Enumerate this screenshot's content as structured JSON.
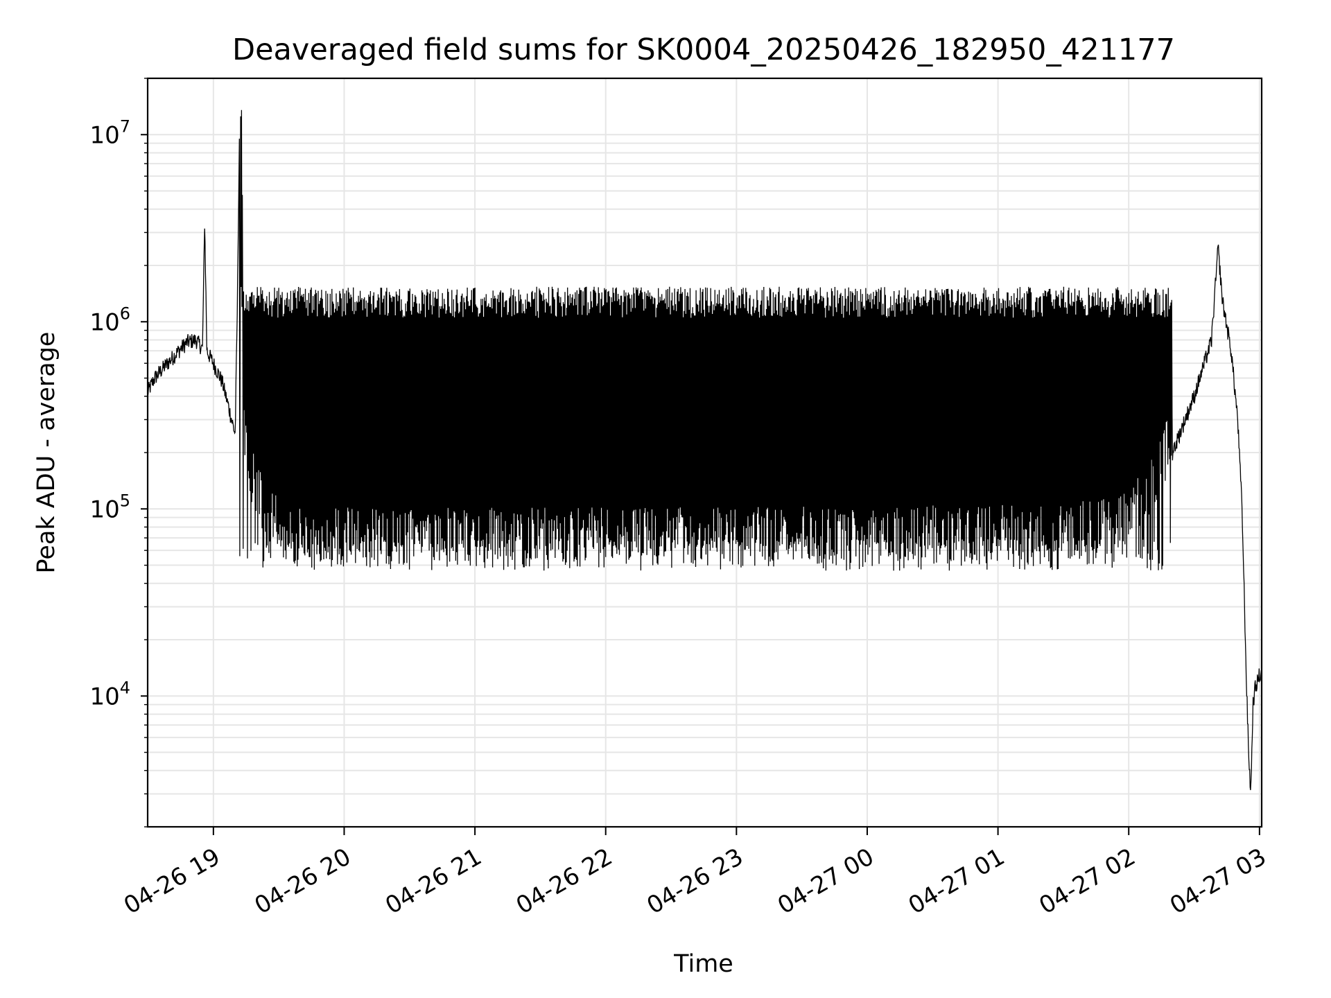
{
  "chart_data": {
    "type": "line",
    "title": "Deaveraged field sums for SK0004_20250426_182950_421177",
    "xlabel": "Time",
    "ylabel": "Peak ADU - average",
    "yscale": "log",
    "ylim": [
      2000,
      20000000
    ],
    "xlim": [
      "2025-04-26T18:29:50",
      "2025-04-27T03:01:00"
    ],
    "x_ticks": [
      {
        "time": "2025-04-26T19:00",
        "label": "04-26 19"
      },
      {
        "time": "2025-04-26T20:00",
        "label": "04-26 20"
      },
      {
        "time": "2025-04-26T21:00",
        "label": "04-26 21"
      },
      {
        "time": "2025-04-26T22:00",
        "label": "04-26 22"
      },
      {
        "time": "2025-04-26T23:00",
        "label": "04-26 23"
      },
      {
        "time": "2025-04-27T00:00",
        "label": "04-27 00"
      },
      {
        "time": "2025-04-27T01:00",
        "label": "04-27 01"
      },
      {
        "time": "2025-04-27T02:00",
        "label": "04-27 02"
      },
      {
        "time": "2025-04-27T03:00",
        "label": "04-27 03"
      }
    ],
    "y_ticks": [
      {
        "value": 10000,
        "base": "10",
        "exp": "4"
      },
      {
        "value": 100000,
        "base": "10",
        "exp": "5"
      },
      {
        "value": 1000000,
        "base": "10",
        "exp": "6"
      },
      {
        "value": 10000000,
        "base": "10",
        "exp": "7"
      }
    ],
    "grid": true,
    "line_color": "#000000",
    "grid_color": "#e6e6e6",
    "series": [
      {
        "values_description_free": true,
        "points": [
          [
            "2025-04-26T18:29:50",
            420000
          ],
          [
            "2025-04-26T18:33:00",
            500000
          ],
          [
            "2025-04-26T18:36:00",
            550000
          ],
          [
            "2025-04-26T18:40:00",
            620000
          ],
          [
            "2025-04-26T18:44:00",
            700000
          ],
          [
            "2025-04-26T18:48:00",
            780000
          ],
          [
            "2025-04-26T18:52:00",
            800000
          ],
          [
            "2025-04-26T18:55:00",
            720000
          ],
          [
            "2025-04-26T18:56:00",
            3500000
          ],
          [
            "2025-04-26T18:57:00",
            700000
          ],
          [
            "2025-04-26T19:00:00",
            600000
          ],
          [
            "2025-04-26T19:04:00",
            480000
          ],
          [
            "2025-04-26T19:07:00",
            350000
          ],
          [
            "2025-04-26T19:10:00",
            250000
          ],
          [
            "2025-04-26T19:11:00",
            1250000
          ],
          [
            "2025-04-26T19:12:00",
            12000000
          ],
          [
            "2025-04-26T19:13:00",
            10500000
          ],
          [
            "2025-04-26T19:14:00",
            200000
          ],
          [
            "2025-04-26T19:16:00",
            140000
          ],
          [
            "2025-04-26T19:20:00",
            100000
          ],
          [
            "2025-04-26T19:25:00",
            80000
          ],
          [
            "2025-04-26T19:30:00",
            65000
          ],
          [
            "2025-04-26T19:40:00",
            58000
          ],
          [
            "2025-04-27T01:30:00",
            60000
          ],
          [
            "2025-04-27T02:00:00",
            70000
          ],
          [
            "2025-04-27T02:10:00",
            110000
          ],
          [
            "2025-04-27T02:20:00",
            200000
          ],
          [
            "2025-04-27T02:30:00",
            400000
          ],
          [
            "2025-04-27T02:38:00",
            800000
          ],
          [
            "2025-04-27T02:41:00",
            2500000
          ],
          [
            "2025-04-27T02:43:00",
            1300000
          ],
          [
            "2025-04-27T02:47:00",
            700000
          ],
          [
            "2025-04-27T02:50:00",
            300000
          ],
          [
            "2025-04-27T02:52:00",
            100000
          ],
          [
            "2025-04-27T02:54:00",
            12000
          ],
          [
            "2025-04-27T02:55:00",
            5000
          ],
          [
            "2025-04-27T02:56:00",
            3000
          ],
          [
            "2025-04-27T02:57:00",
            9000
          ],
          [
            "2025-04-27T02:58:00",
            11000
          ],
          [
            "2025-04-27T03:00:00",
            13000
          ]
        ],
        "oscillation": {
          "from": "2025-04-26T19:12:00",
          "to": "2025-04-27T02:20:00",
          "upper": 1400000,
          "lower": 55000
        }
      }
    ]
  }
}
